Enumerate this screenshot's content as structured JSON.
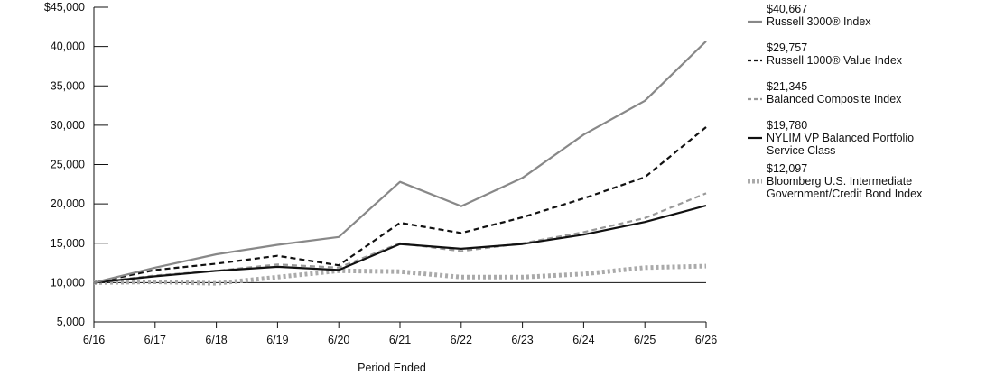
{
  "chart_data": {
    "type": "line",
    "xlabel": "Period Ended",
    "ylabel": "",
    "x": [
      "6/16",
      "6/17",
      "6/18",
      "6/19",
      "6/20",
      "6/21",
      "6/22",
      "6/23",
      "6/24",
      "6/25",
      "6/26"
    ],
    "ylim": [
      5000,
      45000
    ],
    "yticks": [
      "$45,000",
      "40,000",
      "35,000",
      "30,000",
      "25,000",
      "20,000",
      "15,000",
      "10,000",
      "5,000"
    ],
    "ytick_values": [
      45000,
      40000,
      35000,
      30000,
      25000,
      20000,
      15000,
      10000,
      5000
    ],
    "legend_placement": "right",
    "series": [
      {
        "name": "Russell 3000® Index",
        "end_label": "$40,667",
        "color": "#888888",
        "style": "solid",
        "values": [
          10000,
          11900,
          13600,
          14800,
          15800,
          22800,
          19700,
          23300,
          28800,
          33100,
          40667
        ]
      },
      {
        "name": "Russell 1000® Value Index",
        "end_label": "$29,757",
        "color": "#111111",
        "style": "dashed",
        "values": [
          10000,
          11600,
          12400,
          13400,
          12200,
          17600,
          16300,
          18300,
          20700,
          23400,
          29757
        ]
      },
      {
        "name": "Balanced Composite Index",
        "end_label": "$21,345",
        "color": "#999999",
        "style": "dashed",
        "values": [
          10000,
          10900,
          11500,
          12300,
          11900,
          15000,
          14000,
          15000,
          16400,
          18200,
          21345
        ]
      },
      {
        "name": "NYLIM VP Balanced Portfolio Service Class",
        "end_label": "$19,780",
        "color": "#111111",
        "style": "solid",
        "values": [
          10000,
          10800,
          11500,
          12000,
          11600,
          14900,
          14300,
          14900,
          16100,
          17700,
          19780
        ]
      },
      {
        "name": "Bloomberg U.S. Intermediate Government/Credit Bond Index",
        "end_label": "$12,097",
        "color": "#aaaaaa",
        "style": "dotted",
        "values": [
          10000,
          10100,
          9900,
          10700,
          11500,
          11400,
          10700,
          10700,
          11100,
          11900,
          12097
        ]
      }
    ],
    "legend": [
      {
        "value": "$40,667",
        "lines": [
          "Russell 3000® Index"
        ]
      },
      {
        "value": "$29,757",
        "lines": [
          "Russell 1000® Value Index"
        ]
      },
      {
        "value": "$21,345",
        "lines": [
          "Balanced Composite Index"
        ]
      },
      {
        "value": "$19,780",
        "lines": [
          "NYLIM VP Balanced Portfolio",
          "Service Class"
        ]
      },
      {
        "value": "$12,097",
        "lines": [
          "Bloomberg U.S. Intermediate",
          "Government/Credit Bond Index"
        ]
      }
    ]
  }
}
